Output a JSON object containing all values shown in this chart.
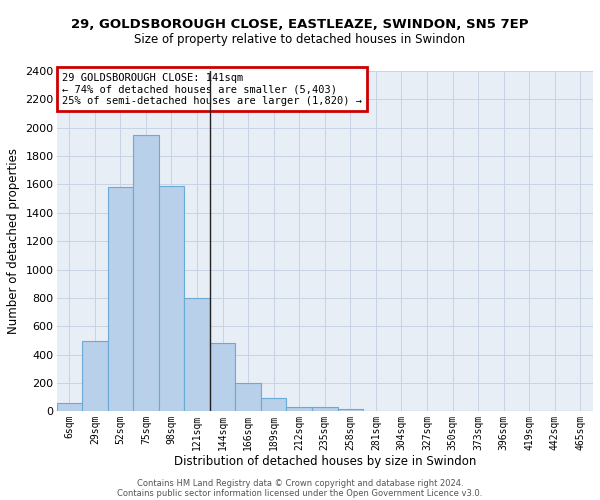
{
  "title1": "29, GOLDSBOROUGH CLOSE, EASTLEAZE, SWINDON, SN5 7EP",
  "title2": "Size of property relative to detached houses in Swindon",
  "xlabel": "Distribution of detached houses by size in Swindon",
  "ylabel": "Number of detached properties",
  "footer1": "Contains HM Land Registry data © Crown copyright and database right 2024.",
  "footer2": "Contains public sector information licensed under the Open Government Licence v3.0.",
  "annotation_line1": "29 GOLDSBOROUGH CLOSE: 141sqm",
  "annotation_line2": "← 74% of detached houses are smaller (5,403)",
  "annotation_line3": "25% of semi-detached houses are larger (1,820) →",
  "bar_labels": [
    "6sqm",
    "29sqm",
    "52sqm",
    "75sqm",
    "98sqm",
    "121sqm",
    "144sqm",
    "166sqm",
    "189sqm",
    "212sqm",
    "235sqm",
    "258sqm",
    "281sqm",
    "304sqm",
    "327sqm",
    "350sqm",
    "373sqm",
    "396sqm",
    "419sqm",
    "442sqm",
    "465sqm"
  ],
  "bar_values": [
    60,
    500,
    1580,
    1950,
    1590,
    800,
    480,
    200,
    95,
    35,
    28,
    20,
    0,
    0,
    0,
    0,
    0,
    0,
    0,
    0,
    0
  ],
  "bar_color": "#b8d0ea",
  "bar_edge_color": "#6aaad4",
  "vline_index": 5.5,
  "vline_color": "#222222",
  "ylim": [
    0,
    2400
  ],
  "yticks": [
    0,
    200,
    400,
    600,
    800,
    1000,
    1200,
    1400,
    1600,
    1800,
    2000,
    2200,
    2400
  ],
  "annotation_box_color": "#cc0000",
  "grid_color": "#c8d4e4",
  "bg_color": "#e8eef6",
  "fig_width": 6.0,
  "fig_height": 5.0,
  "dpi": 100
}
